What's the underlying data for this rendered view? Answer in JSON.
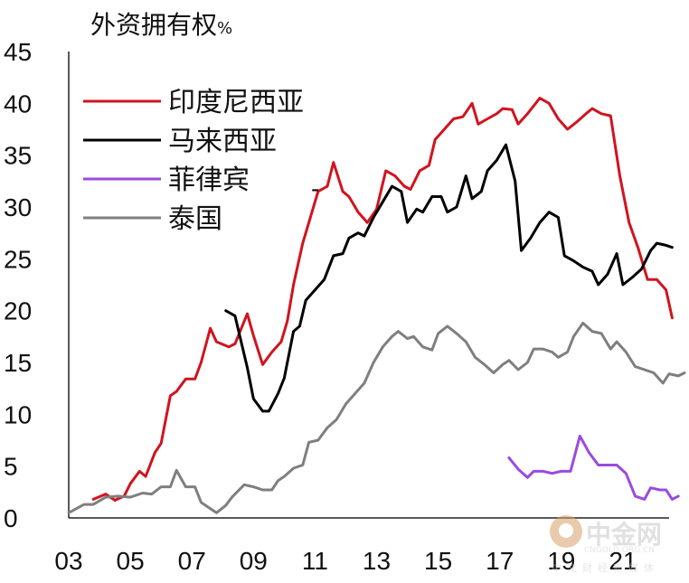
{
  "chart_data": {
    "type": "line",
    "title": "外资拥有权",
    "unit": "%",
    "xlabel": "",
    "ylabel": "",
    "x_ticks": [
      "03",
      "05",
      "07",
      "09",
      "11",
      "13",
      "15",
      "17",
      "19",
      "21"
    ],
    "y_ticks": [
      "0",
      "5",
      "10",
      "15",
      "20",
      "25",
      "30",
      "35",
      "40",
      "45"
    ],
    "xlim": [
      2003.0,
      2022.5
    ],
    "ylim": [
      0,
      45
    ],
    "grid": false,
    "legend_position": "top-left",
    "series": [
      {
        "name": "印度尼西亚",
        "color": "#d0141f",
        "points": [
          [
            2003.8,
            1.8
          ],
          [
            2004.2,
            2.3
          ],
          [
            2004.5,
            1.7
          ],
          [
            2004.8,
            2.1
          ],
          [
            2005.0,
            3.3
          ],
          [
            2005.3,
            4.5
          ],
          [
            2005.5,
            4.0
          ],
          [
            2005.8,
            6.3
          ],
          [
            2006.0,
            7.2
          ],
          [
            2006.3,
            11.8
          ],
          [
            2006.5,
            12.2
          ],
          [
            2006.8,
            13.4
          ],
          [
            2007.1,
            13.4
          ],
          [
            2007.3,
            15.0
          ],
          [
            2007.6,
            18.3
          ],
          [
            2007.8,
            17.0
          ],
          [
            2008.2,
            16.5
          ],
          [
            2008.4,
            16.8
          ],
          [
            2008.8,
            19.7
          ],
          [
            2009.0,
            17.6
          ],
          [
            2009.3,
            14.8
          ],
          [
            2009.6,
            16.0
          ],
          [
            2009.9,
            17.0
          ],
          [
            2010.1,
            19.0
          ],
          [
            2010.3,
            22.5
          ],
          [
            2010.6,
            26.5
          ],
          [
            2010.9,
            29.5
          ],
          [
            2011.1,
            31.5
          ],
          [
            2011.4,
            32.0
          ],
          [
            2011.6,
            34.3
          ],
          [
            2011.9,
            31.5
          ],
          [
            2012.1,
            31.0
          ],
          [
            2012.4,
            29.5
          ],
          [
            2012.7,
            28.5
          ],
          [
            2013.0,
            29.8
          ],
          [
            2013.3,
            33.5
          ],
          [
            2013.6,
            33.0
          ],
          [
            2013.9,
            32.0
          ],
          [
            2014.1,
            31.7
          ],
          [
            2014.4,
            33.5
          ],
          [
            2014.7,
            34.0
          ],
          [
            2014.9,
            36.5
          ],
          [
            2015.2,
            37.5
          ],
          [
            2015.5,
            38.5
          ],
          [
            2015.8,
            38.7
          ],
          [
            2016.1,
            40.0
          ],
          [
            2016.3,
            38.0
          ],
          [
            2016.6,
            38.5
          ],
          [
            2016.9,
            39.0
          ],
          [
            2017.1,
            39.5
          ],
          [
            2017.4,
            39.4
          ],
          [
            2017.6,
            38.0
          ],
          [
            2017.9,
            39.0
          ],
          [
            2018.3,
            40.5
          ],
          [
            2018.6,
            40.0
          ],
          [
            2018.9,
            38.5
          ],
          [
            2019.2,
            37.5
          ],
          [
            2019.5,
            38.2
          ],
          [
            2019.8,
            39.0
          ],
          [
            2020.0,
            39.5
          ],
          [
            2020.3,
            39.0
          ],
          [
            2020.6,
            38.8
          ],
          [
            2020.9,
            33.0
          ],
          [
            2021.2,
            28.5
          ],
          [
            2021.5,
            26.0
          ],
          [
            2021.8,
            23.0
          ],
          [
            2022.1,
            23.0
          ],
          [
            2022.4,
            22.0
          ],
          [
            2022.6,
            19.3
          ]
        ]
      },
      {
        "name": "马来西亚",
        "color": "#000000",
        "points": [
          [
            2008.1,
            20.0
          ],
          [
            2008.4,
            19.5
          ],
          [
            2008.8,
            14.5
          ],
          [
            2009.0,
            11.5
          ],
          [
            2009.3,
            10.3
          ],
          [
            2009.5,
            10.3
          ],
          [
            2009.8,
            12.0
          ],
          [
            2010.0,
            13.5
          ],
          [
            2010.3,
            18.0
          ],
          [
            2010.5,
            18.5
          ],
          [
            2010.7,
            21.0
          ],
          [
            2011.0,
            22.0
          ],
          [
            2011.3,
            23.0
          ],
          [
            2011.6,
            25.3
          ],
          [
            2011.9,
            25.5
          ],
          [
            2012.1,
            27.0
          ],
          [
            2012.4,
            27.5
          ],
          [
            2012.6,
            27.2
          ],
          [
            2012.9,
            29.0
          ],
          [
            2013.2,
            30.5
          ],
          [
            2013.5,
            32.0
          ],
          [
            2013.8,
            31.5
          ],
          [
            2014.0,
            28.5
          ],
          [
            2014.3,
            29.8
          ],
          [
            2014.5,
            29.5
          ],
          [
            2014.8,
            31.0
          ],
          [
            2015.1,
            31.0
          ],
          [
            2015.3,
            29.5
          ],
          [
            2015.6,
            30.0
          ],
          [
            2015.9,
            33.0
          ],
          [
            2016.1,
            30.8
          ],
          [
            2016.4,
            31.5
          ],
          [
            2016.6,
            33.5
          ],
          [
            2016.9,
            34.5
          ],
          [
            2017.2,
            36.0
          ],
          [
            2017.5,
            32.5
          ],
          [
            2017.7,
            25.8
          ],
          [
            2018.0,
            27.0
          ],
          [
            2018.3,
            28.5
          ],
          [
            2018.6,
            29.5
          ],
          [
            2018.9,
            29.0
          ],
          [
            2019.1,
            25.3
          ],
          [
            2019.4,
            24.8
          ],
          [
            2019.7,
            24.2
          ],
          [
            2020.0,
            23.8
          ],
          [
            2020.2,
            22.5
          ],
          [
            2020.5,
            23.5
          ],
          [
            2020.8,
            25.5
          ],
          [
            2021.0,
            22.5
          ],
          [
            2021.3,
            23.2
          ],
          [
            2021.6,
            24.0
          ],
          [
            2021.9,
            25.8
          ],
          [
            2022.1,
            26.5
          ],
          [
            2022.4,
            26.3
          ],
          [
            2022.6,
            26.1
          ]
        ]
      },
      {
        "name": "菲律宾",
        "color": "#9b4ae0",
        "points": [
          [
            2017.3,
            5.8
          ],
          [
            2017.6,
            4.7
          ],
          [
            2017.9,
            3.9
          ],
          [
            2018.1,
            4.5
          ],
          [
            2018.4,
            4.5
          ],
          [
            2018.7,
            4.3
          ],
          [
            2019.0,
            4.5
          ],
          [
            2019.3,
            4.5
          ],
          [
            2019.6,
            7.9
          ],
          [
            2019.9,
            6.3
          ],
          [
            2020.2,
            5.1
          ],
          [
            2020.5,
            5.1
          ],
          [
            2020.8,
            5.1
          ],
          [
            2021.1,
            4.3
          ],
          [
            2021.4,
            2.1
          ],
          [
            2021.7,
            1.8
          ],
          [
            2021.9,
            2.9
          ],
          [
            2022.2,
            2.7
          ],
          [
            2022.4,
            2.7
          ],
          [
            2022.6,
            1.8
          ],
          [
            2022.8,
            2.1
          ]
        ]
      },
      {
        "name": "泰国",
        "color": "#7f7f7f",
        "points": [
          [
            2003.0,
            0.5
          ],
          [
            2003.5,
            1.3
          ],
          [
            2003.8,
            1.3
          ],
          [
            2004.2,
            2.0
          ],
          [
            2004.6,
            2.1
          ],
          [
            2005.0,
            2.0
          ],
          [
            2005.4,
            2.4
          ],
          [
            2005.7,
            2.3
          ],
          [
            2006.0,
            3.0
          ],
          [
            2006.3,
            3.0
          ],
          [
            2006.5,
            4.6
          ],
          [
            2006.8,
            3.0
          ],
          [
            2007.1,
            3.0
          ],
          [
            2007.3,
            1.5
          ],
          [
            2007.6,
            0.9
          ],
          [
            2007.8,
            0.5
          ],
          [
            2008.1,
            1.2
          ],
          [
            2008.3,
            2.0
          ],
          [
            2008.7,
            3.2
          ],
          [
            2009.0,
            3.0
          ],
          [
            2009.3,
            2.7
          ],
          [
            2009.6,
            2.7
          ],
          [
            2009.8,
            3.6
          ],
          [
            2010.0,
            4.0
          ],
          [
            2010.3,
            4.8
          ],
          [
            2010.6,
            5.1
          ],
          [
            2010.8,
            7.3
          ],
          [
            2011.1,
            7.5
          ],
          [
            2011.4,
            8.7
          ],
          [
            2011.7,
            9.5
          ],
          [
            2012.0,
            11.0
          ],
          [
            2012.3,
            12.0
          ],
          [
            2012.6,
            13.0
          ],
          [
            2012.9,
            15.0
          ],
          [
            2013.2,
            16.5
          ],
          [
            2013.5,
            17.5
          ],
          [
            2013.7,
            18.0
          ],
          [
            2014.0,
            17.3
          ],
          [
            2014.2,
            17.5
          ],
          [
            2014.5,
            16.5
          ],
          [
            2014.8,
            16.2
          ],
          [
            2015.0,
            17.8
          ],
          [
            2015.3,
            18.5
          ],
          [
            2015.6,
            17.8
          ],
          [
            2015.9,
            17.0
          ],
          [
            2016.2,
            15.5
          ],
          [
            2016.5,
            14.8
          ],
          [
            2016.8,
            14.0
          ],
          [
            2017.1,
            14.8
          ],
          [
            2017.3,
            15.2
          ],
          [
            2017.6,
            14.3
          ],
          [
            2017.9,
            15.0
          ],
          [
            2018.1,
            16.3
          ],
          [
            2018.4,
            16.3
          ],
          [
            2018.7,
            16.0
          ],
          [
            2018.9,
            15.5
          ],
          [
            2019.2,
            16.0
          ],
          [
            2019.4,
            17.5
          ],
          [
            2019.7,
            18.8
          ],
          [
            2020.0,
            18.0
          ],
          [
            2020.3,
            17.8
          ],
          [
            2020.6,
            16.3
          ],
          [
            2020.8,
            17.0
          ],
          [
            2021.1,
            16.0
          ],
          [
            2021.4,
            14.6
          ],
          [
            2021.7,
            14.3
          ],
          [
            2022.0,
            14.0
          ],
          [
            2022.3,
            13.0
          ],
          [
            2022.5,
            13.9
          ],
          [
            2022.8,
            13.7
          ],
          [
            2023.0,
            14.0
          ]
        ]
      }
    ],
    "annotation": "-"
  },
  "watermark": {
    "brand": "中金网",
    "url": "CNGOLD.ORG.CN",
    "slogan": "中文财经新媒体"
  }
}
